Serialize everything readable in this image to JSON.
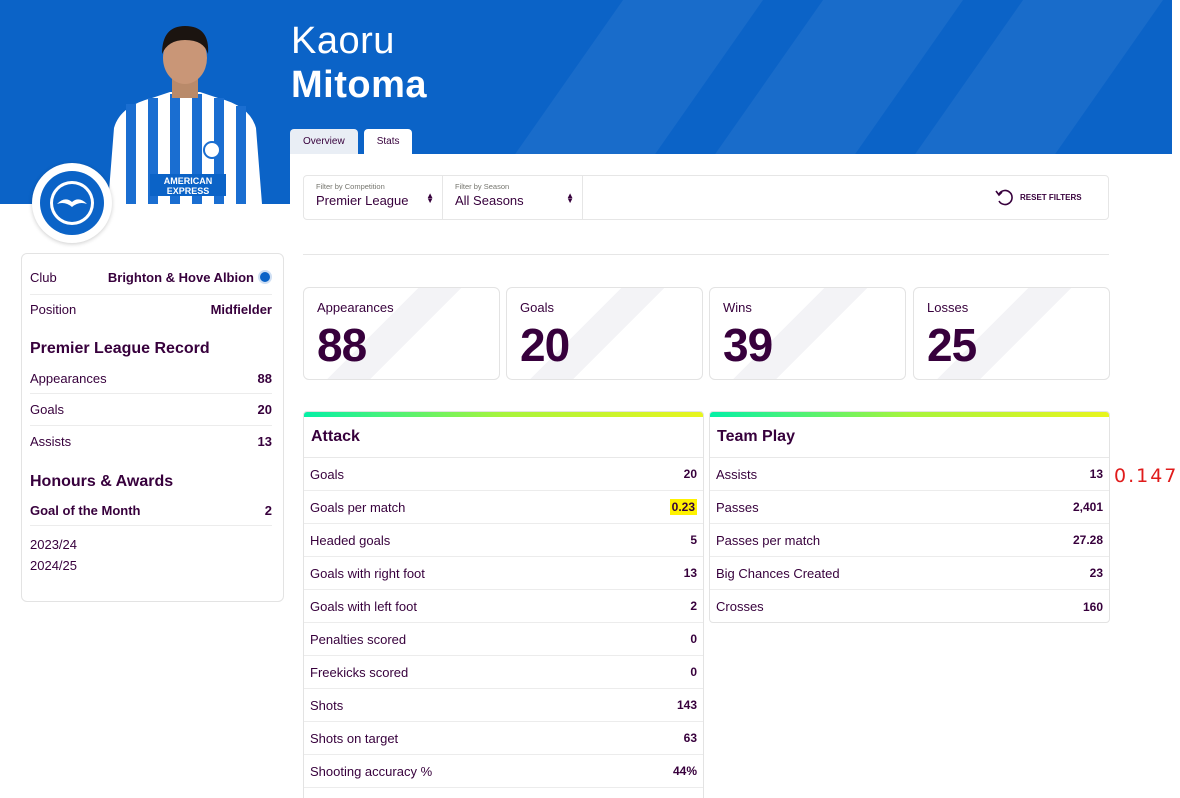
{
  "player": {
    "first_name": "Kaoru",
    "last_name": "Mitoma"
  },
  "colors": {
    "hero": "#0b63c7",
    "brand": "#37003c",
    "highlight": "#fff200",
    "annotation": "#e01b1b"
  },
  "tabs": [
    {
      "label": "Overview"
    },
    {
      "label": "Stats"
    }
  ],
  "filters": {
    "competition": {
      "label": "Filter by Competition",
      "value": "Premier League"
    },
    "season": {
      "label": "Filter by Season",
      "value": "All Seasons"
    },
    "reset_label": "RESET FILTERS"
  },
  "sidebar": {
    "club_label": "Club",
    "club_value": "Brighton & Hove Albion",
    "position_label": "Position",
    "position_value": "Midfielder",
    "record_title": "Premier League Record",
    "record": [
      {
        "label": "Appearances",
        "value": "88"
      },
      {
        "label": "Goals",
        "value": "20"
      },
      {
        "label": "Assists",
        "value": "13"
      }
    ],
    "honours_title": "Honours & Awards",
    "award": {
      "label": "Goal of the Month",
      "value": "2"
    },
    "seasons": [
      "2023/24",
      "2024/25"
    ]
  },
  "cards": [
    {
      "label": "Appearances",
      "value": "88"
    },
    {
      "label": "Goals",
      "value": "20"
    },
    {
      "label": "Wins",
      "value": "39"
    },
    {
      "label": "Losses",
      "value": "25"
    }
  ],
  "attack": {
    "title": "Attack",
    "rows": [
      {
        "label": "Goals",
        "value": "20"
      },
      {
        "label": "Goals per match",
        "value": "0.23"
      },
      {
        "label": "Headed goals",
        "value": "5"
      },
      {
        "label": "Goals with right foot",
        "value": "13"
      },
      {
        "label": "Goals with left foot",
        "value": "2"
      },
      {
        "label": "Penalties scored",
        "value": "0"
      },
      {
        "label": "Freekicks scored",
        "value": "0"
      },
      {
        "label": "Shots",
        "value": "143"
      },
      {
        "label": "Shots on target",
        "value": "63"
      },
      {
        "label": "Shooting accuracy %",
        "value": "44%"
      }
    ]
  },
  "team_play": {
    "title": "Team Play",
    "rows": [
      {
        "label": "Assists",
        "value": "13"
      },
      {
        "label": "Passes",
        "value": "2,401"
      },
      {
        "label": "Passes per match",
        "value": "27.28"
      },
      {
        "label": "Big Chances Created",
        "value": "23"
      },
      {
        "label": "Crosses",
        "value": "160"
      }
    ]
  },
  "annotation": "0.147"
}
